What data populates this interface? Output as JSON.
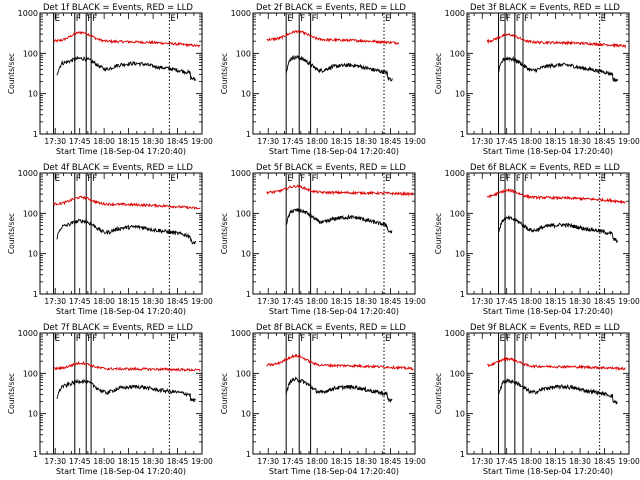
{
  "chart_data": {
    "type": "line",
    "layout": "3x3 grid of panels",
    "y_scale": "log",
    "ylim": [
      1,
      1000
    ],
    "y_ticks": [
      1,
      10,
      100,
      1000
    ],
    "y_tick_labels": [
      "1",
      "10",
      "100",
      "1000"
    ],
    "ylabel": "Counts/sec",
    "x_tick_labels": [
      "17:30",
      "17:45",
      "18:00",
      "18:15",
      "18:30",
      "18:45",
      "19:00"
    ],
    "xlim": [
      "17:20:40",
      "19:00"
    ],
    "xlabel": "Start Time (18-Sep-04 17:20:40)",
    "legend": "BLACK = Events, RED = LLD",
    "marker_labels": {
      "E": "E",
      "F": "F"
    },
    "colors": {
      "events": "#000000",
      "lld": "#dd0000",
      "axes": "#000000"
    },
    "panels": [
      {
        "title": "Det 1f BLACK = Events, RED = LLD",
        "markers": {
          "E_start": "17:29",
          "F1": "17:42",
          "F2": "17:49",
          "F3": "17:52",
          "E_end": "18:40"
        },
        "events": {
          "start": "17:31",
          "end": "18:56",
          "level": 55,
          "peak": "17:46",
          "peak_value": 75,
          "drop_end": 30
        },
        "lld": {
          "start": "17:29",
          "end": "18:59",
          "level": 200,
          "peak": "17:46",
          "peak_value": 330,
          "end_value": 150
        }
      },
      {
        "title": "Det 2f BLACK = Events, RED = LLD",
        "markers": {
          "E_start": "17:41",
          "F1": "17:49",
          "F2": "17:56",
          "E_end": "18:41"
        },
        "events": {
          "start": "17:41",
          "end": "18:46",
          "level": 50,
          "peak": "17:47",
          "peak_value": 80,
          "drop_end": 30
        },
        "lld": {
          "start": "17:29",
          "end": "18:50",
          "level": 220,
          "peak": "17:48",
          "peak_value": 350,
          "end_value": 180
        }
      },
      {
        "title": "Det 3f BLACK = Events, RED = LLD",
        "markers": {
          "E_start": "17:40",
          "F1": "17:44",
          "F2": "17:50",
          "F3": "17:55",
          "E_end": "18:42"
        },
        "events": {
          "start": "17:40",
          "end": "18:53",
          "level": 50,
          "peak": "17:46",
          "peak_value": 75,
          "drop_end": 28
        },
        "lld": {
          "start": "17:33",
          "end": "18:58",
          "level": 190,
          "peak": "17:46",
          "peak_value": 290,
          "end_value": 150
        }
      },
      {
        "title": "Det 4f BLACK = Events, RED = LLD",
        "markers": {
          "E_start": "17:29",
          "F1": "17:42",
          "F2": "17:49",
          "F3": "17:52",
          "E_end": "18:40"
        },
        "events": {
          "start": "17:31",
          "end": "18:56",
          "level": 45,
          "peak": "17:46",
          "peak_value": 65,
          "drop_end": 25
        },
        "lld": {
          "start": "17:29",
          "end": "18:59",
          "level": 170,
          "peak": "17:46",
          "peak_value": 250,
          "end_value": 130
        }
      },
      {
        "title": "Det 5f BLACK = Events, RED = LLD",
        "markers": {
          "E_start": "17:41",
          "F1": "17:49",
          "F2": "17:56",
          "E_end": "18:41"
        },
        "events": {
          "start": "17:41",
          "end": "18:46",
          "level": 80,
          "peak": "17:48",
          "peak_value": 120,
          "drop_end": 45
        },
        "lld": {
          "start": "17:29",
          "end": "18:59",
          "level": 330,
          "peak": "17:47",
          "peak_value": 470,
          "end_value": 300
        }
      },
      {
        "title": "Det 6f BLACK = Events, RED = LLD",
        "markers": {
          "E_start": "17:40",
          "F1": "17:44",
          "F2": "17:50",
          "F3": "17:55",
          "E_end": "18:42"
        },
        "events": {
          "start": "17:40",
          "end": "18:53",
          "level": 50,
          "peak": "17:46",
          "peak_value": 75,
          "drop_end": 28
        },
        "lld": {
          "start": "17:33",
          "end": "18:58",
          "level": 250,
          "peak": "17:46",
          "peak_value": 370,
          "end_value": 190
        }
      },
      {
        "title": "Det 7f BLACK = Events, RED = LLD",
        "markers": {
          "E_start": "17:29",
          "F1": "17:42",
          "F2": "17:49",
          "F3": "17:52",
          "E_end": "18:40"
        },
        "events": {
          "start": "17:31",
          "end": "18:56",
          "level": 45,
          "peak": "17:46",
          "peak_value": 65,
          "drop_end": 28
        },
        "lld": {
          "start": "17:29",
          "end": "18:59",
          "level": 130,
          "peak": "17:46",
          "peak_value": 180,
          "end_value": 120
        }
      },
      {
        "title": "Det 8f BLACK = Events, RED = LLD",
        "markers": {
          "E_start": "17:41",
          "F1": "17:49",
          "F2": "17:56",
          "E_end": "18:41"
        },
        "events": {
          "start": "17:41",
          "end": "18:46",
          "level": 45,
          "peak": "17:47",
          "peak_value": 70,
          "drop_end": 28
        },
        "lld": {
          "start": "17:29",
          "end": "18:59",
          "level": 160,
          "peak": "17:47",
          "peak_value": 270,
          "end_value": 130
        }
      },
      {
        "title": "Det 9f BLACK = Events, RED = LLD",
        "markers": {
          "E_start": "17:40",
          "F1": "17:44",
          "F2": "17:50",
          "F3": "17:55",
          "E_end": "18:42"
        },
        "events": {
          "start": "17:40",
          "end": "18:53",
          "level": 45,
          "peak": "17:46",
          "peak_value": 65,
          "drop_end": 25
        },
        "lld": {
          "start": "17:33",
          "end": "18:58",
          "level": 150,
          "peak": "17:46",
          "peak_value": 230,
          "end_value": 130
        }
      }
    ]
  }
}
